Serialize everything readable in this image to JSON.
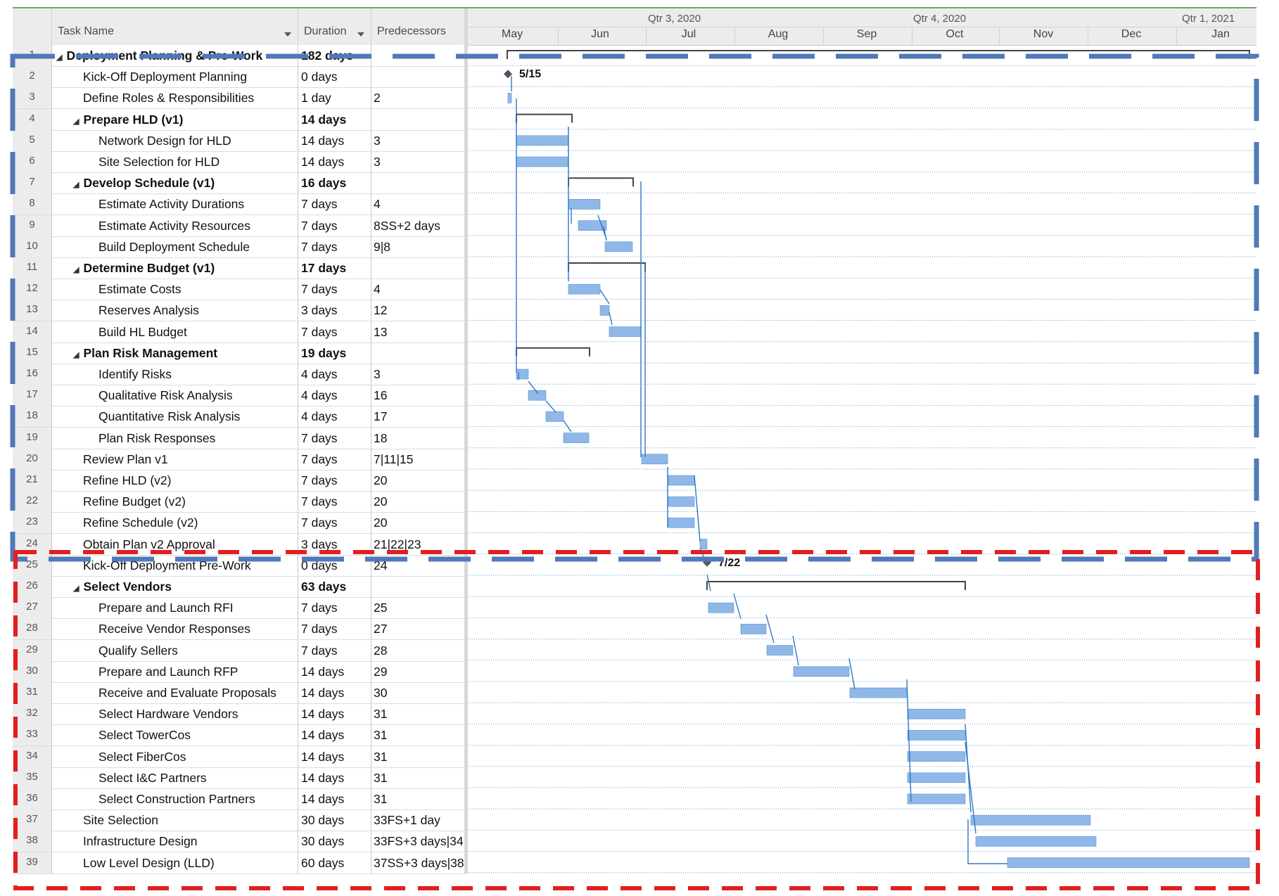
{
  "columns": {
    "task_name": "Task Name",
    "duration": "Duration",
    "predecessors": "Predecessors"
  },
  "timescale": {
    "quarters": [
      "Qtr 3, 2020",
      "Qtr 4, 2020",
      "Qtr 1, 2021"
    ],
    "months": [
      "May",
      "Jun",
      "Jul",
      "Aug",
      "Sep",
      "Oct",
      "Nov",
      "Dec",
      "Jan"
    ]
  },
  "colors": {
    "bar": "#8fb8e8",
    "bar_border": "#5b8fd0",
    "link": "#2f78c4",
    "summary": "#444444",
    "blue_box": "#4f79b9",
    "red_box": "#e02020"
  },
  "tasks": [
    {
      "id": "1",
      "name": "Deployment Planning & Pre-Work",
      "duration": "182 days",
      "pred": "",
      "level": 0,
      "summary": true
    },
    {
      "id": "2",
      "name": "Kick-Off Deployment Planning",
      "duration": "0 days",
      "pred": "",
      "level": 1,
      "summary": false
    },
    {
      "id": "3",
      "name": "Define Roles & Responsibilities",
      "duration": "1 day",
      "pred": "2",
      "level": 1,
      "summary": false
    },
    {
      "id": "4",
      "name": "Prepare HLD (v1)",
      "duration": "14 days",
      "pred": "",
      "level": 1,
      "summary": true
    },
    {
      "id": "5",
      "name": "Network Design for HLD",
      "duration": "14 days",
      "pred": "3",
      "level": 2,
      "summary": false
    },
    {
      "id": "6",
      "name": "Site Selection for HLD",
      "duration": "14 days",
      "pred": "3",
      "level": 2,
      "summary": false
    },
    {
      "id": "7",
      "name": "Develop Schedule (v1)",
      "duration": "16 days",
      "pred": "",
      "level": 1,
      "summary": true
    },
    {
      "id": "8",
      "name": "Estimate Activity Durations",
      "duration": "7 days",
      "pred": "4",
      "level": 2,
      "summary": false
    },
    {
      "id": "9",
      "name": "Estimate Activity Resources",
      "duration": "7 days",
      "pred": "8SS+2 days",
      "level": 2,
      "summary": false
    },
    {
      "id": "10",
      "name": "Build Deployment Schedule",
      "duration": "7 days",
      "pred": "9|8",
      "level": 2,
      "summary": false
    },
    {
      "id": "11",
      "name": "Determine Budget (v1)",
      "duration": "17 days",
      "pred": "",
      "level": 1,
      "summary": true
    },
    {
      "id": "12",
      "name": "Estimate Costs",
      "duration": "7 days",
      "pred": "4",
      "level": 2,
      "summary": false
    },
    {
      "id": "13",
      "name": "Reserves Analysis",
      "duration": "3 days",
      "pred": "12",
      "level": 2,
      "summary": false
    },
    {
      "id": "14",
      "name": "Build HL Budget",
      "duration": "7 days",
      "pred": "13",
      "level": 2,
      "summary": false
    },
    {
      "id": "15",
      "name": "Plan Risk Management",
      "duration": "19 days",
      "pred": "",
      "level": 1,
      "summary": true
    },
    {
      "id": "16",
      "name": "Identify Risks",
      "duration": "4 days",
      "pred": "3",
      "level": 2,
      "summary": false
    },
    {
      "id": "17",
      "name": "Qualitative Risk Analysis",
      "duration": "4 days",
      "pred": "16",
      "level": 2,
      "summary": false
    },
    {
      "id": "18",
      "name": "Quantitative Risk Analysis",
      "duration": "4 days",
      "pred": "17",
      "level": 2,
      "summary": false
    },
    {
      "id": "19",
      "name": "Plan Risk Responses",
      "duration": "7 days",
      "pred": "18",
      "level": 2,
      "summary": false
    },
    {
      "id": "20",
      "name": "Review Plan v1",
      "duration": "7 days",
      "pred": "7|11|15",
      "level": 1,
      "summary": false
    },
    {
      "id": "21",
      "name": "Refine HLD (v2)",
      "duration": "7 days",
      "pred": "20",
      "level": 1,
      "summary": false
    },
    {
      "id": "22",
      "name": "Refine Budget (v2)",
      "duration": "7 days",
      "pred": "20",
      "level": 1,
      "summary": false
    },
    {
      "id": "23",
      "name": "Refine Schedule (v2)",
      "duration": "7 days",
      "pred": "20",
      "level": 1,
      "summary": false
    },
    {
      "id": "24",
      "name": "Obtain Plan v2 Approval",
      "duration": "3 days",
      "pred": "21|22|23",
      "level": 1,
      "summary": false
    },
    {
      "id": "25",
      "name": "Kick-Off Deployment Pre-Work",
      "duration": "0 days",
      "pred": "24",
      "level": 1,
      "summary": false
    },
    {
      "id": "26",
      "name": "Select Vendors",
      "duration": "63 days",
      "pred": "",
      "level": 1,
      "summary": true
    },
    {
      "id": "27",
      "name": "Prepare and Launch RFI",
      "duration": "7 days",
      "pred": "25",
      "level": 2,
      "summary": false
    },
    {
      "id": "28",
      "name": "Receive Vendor Responses",
      "duration": "7 days",
      "pred": "27",
      "level": 2,
      "summary": false
    },
    {
      "id": "29",
      "name": "Qualify Sellers",
      "duration": "7 days",
      "pred": "28",
      "level": 2,
      "summary": false
    },
    {
      "id": "30",
      "name": "Prepare and Launch RFP",
      "duration": "14 days",
      "pred": "29",
      "level": 2,
      "summary": false
    },
    {
      "id": "31",
      "name": "Receive and Evaluate Proposals",
      "duration": "14 days",
      "pred": "30",
      "level": 2,
      "summary": false
    },
    {
      "id": "32",
      "name": "Select Hardware Vendors",
      "duration": "14 days",
      "pred": "31",
      "level": 2,
      "summary": false
    },
    {
      "id": "33",
      "name": "Select TowerCos",
      "duration": "14 days",
      "pred": "31",
      "level": 2,
      "summary": false
    },
    {
      "id": "34",
      "name": "Select FiberCos",
      "duration": "14 days",
      "pred": "31",
      "level": 2,
      "summary": false
    },
    {
      "id": "35",
      "name": "Select I&C Partners",
      "duration": "14 days",
      "pred": "31",
      "level": 2,
      "summary": false
    },
    {
      "id": "36",
      "name": "Select Construction Partners",
      "duration": "14 days",
      "pred": "31",
      "level": 2,
      "summary": false
    },
    {
      "id": "37",
      "name": "Site Selection",
      "duration": "30 days",
      "pred": "33FS+1 day",
      "level": 1,
      "summary": false
    },
    {
      "id": "38",
      "name": "Infrastructure Design",
      "duration": "30 days",
      "pred": "33FS+3 days|34",
      "level": 1,
      "summary": false
    },
    {
      "id": "39",
      "name": "Low Level Design (LLD)",
      "duration": "60 days",
      "pred": "37SS+3 days|38",
      "level": 1,
      "summary": false
    }
  ],
  "milestone_labels": {
    "kickoff_planning": "5/15",
    "kickoff_prework": "7/22"
  }
}
